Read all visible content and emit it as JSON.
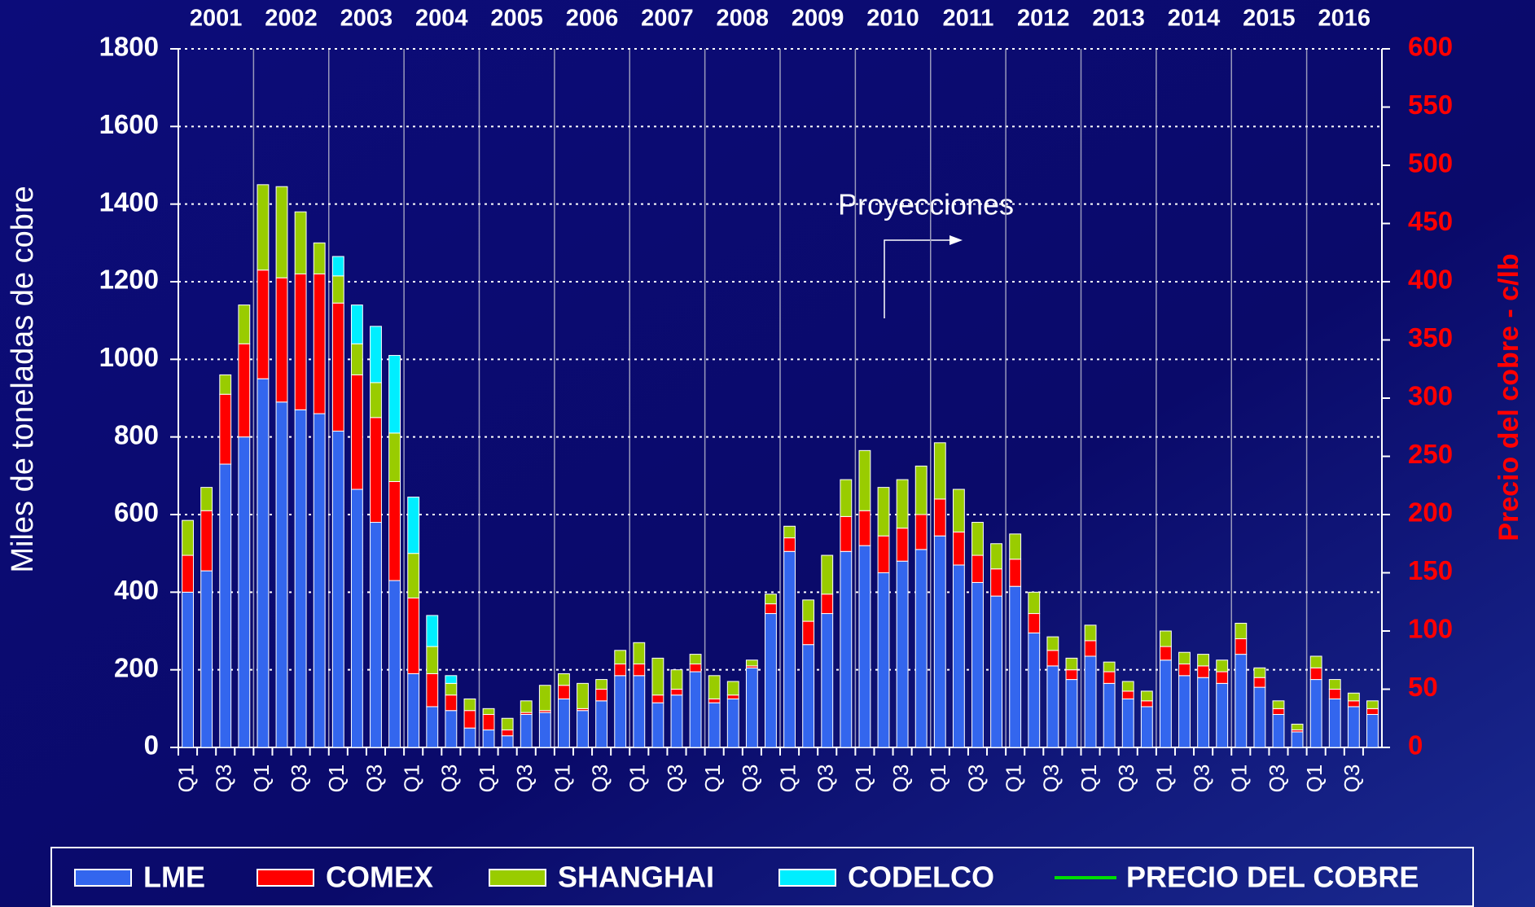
{
  "chart_data": {
    "type": "bar",
    "stacked": true,
    "ylabel": "Miles de toneladas de cobre",
    "y2label": "Precio del cobre - c/lb",
    "annotation": "Proyecciones",
    "year_labels": [
      "2001",
      "2002",
      "2003",
      "2004",
      "2005",
      "2006",
      "2007",
      "2008",
      "2009",
      "2010",
      "2011",
      "2012",
      "2013",
      "2014",
      "2015",
      "2016"
    ],
    "categories": [
      "Q1",
      null,
      "Q3",
      null,
      "Q1",
      null,
      "Q3",
      null,
      "Q1",
      null,
      "Q3",
      null,
      "Q1",
      null,
      "Q3",
      null,
      "Q1",
      null,
      "Q3",
      null,
      "Q1",
      null,
      "Q3",
      null,
      "Q1",
      null,
      "Q3",
      null,
      "Q1",
      null,
      "Q3",
      null,
      "Q1",
      null,
      "Q3",
      null,
      "Q1",
      null,
      "Q3",
      null,
      "Q1",
      null,
      "Q3",
      null,
      "Q1",
      null,
      "Q3",
      null,
      "Q1",
      null,
      "Q3",
      null,
      "Q1",
      null,
      "Q3",
      null,
      "Q1",
      null,
      "Q3",
      null,
      "Q1",
      null,
      "Q3",
      null
    ],
    "series": [
      {
        "name": "LME",
        "color": "#3366ee",
        "values": [
          400,
          455,
          730,
          800,
          950,
          890,
          870,
          860,
          815,
          665,
          580,
          430,
          190,
          105,
          95,
          50,
          45,
          30,
          85,
          90,
          125,
          95,
          120,
          185,
          185,
          115,
          135,
          195,
          115,
          125,
          205,
          345,
          505,
          265,
          345,
          505,
          520,
          450,
          480,
          510,
          545,
          470,
          425,
          390,
          415,
          295,
          210,
          175,
          235,
          165,
          125,
          105,
          225,
          185,
          180,
          165,
          240,
          155,
          85,
          40,
          175,
          125,
          105,
          85
        ]
      },
      {
        "name": "COMEX",
        "color": "#ff0000",
        "values": [
          95,
          155,
          180,
          240,
          280,
          320,
          350,
          360,
          330,
          295,
          270,
          255,
          195,
          85,
          40,
          45,
          40,
          15,
          5,
          5,
          35,
          5,
          30,
          30,
          30,
          20,
          15,
          20,
          10,
          10,
          5,
          25,
          35,
          60,
          50,
          90,
          90,
          95,
          85,
          90,
          95,
          85,
          70,
          70,
          70,
          50,
          40,
          25,
          40,
          30,
          20,
          15,
          35,
          30,
          30,
          30,
          40,
          25,
          15,
          5,
          30,
          25,
          15,
          15
        ]
      },
      {
        "name": "SHANGHAI",
        "color": "#99cc00",
        "values": [
          90,
          60,
          50,
          100,
          220,
          235,
          160,
          80,
          70,
          80,
          90,
          125,
          115,
          70,
          30,
          30,
          15,
          30,
          30,
          65,
          30,
          65,
          25,
          35,
          55,
          95,
          50,
          25,
          60,
          35,
          15,
          25,
          30,
          55,
          100,
          95,
          155,
          125,
          125,
          125,
          145,
          110,
          85,
          65,
          65,
          55,
          35,
          30,
          40,
          25,
          25,
          25,
          40,
          30,
          30,
          30,
          40,
          25,
          20,
          15,
          30,
          25,
          20,
          20
        ]
      },
      {
        "name": "CODELCO",
        "color": "#00eeff",
        "values": [
          null,
          null,
          null,
          null,
          null,
          null,
          null,
          null,
          50,
          100,
          145,
          200,
          145,
          80,
          20,
          null,
          null,
          null,
          null,
          null,
          null,
          null,
          null,
          null,
          null,
          null,
          null,
          null,
          null,
          null,
          null,
          null,
          null,
          null,
          null,
          null,
          null,
          null,
          null,
          null,
          null,
          null,
          null,
          null,
          null,
          null,
          null,
          null,
          null,
          null,
          null,
          null,
          null,
          null,
          null,
          null,
          null,
          null,
          null,
          null,
          null,
          null,
          null,
          null
        ]
      },
      {
        "name": "PRECIO DEL COBRE",
        "color": "#00dd00",
        "type": "line",
        "axis": "y2",
        "values": [
          null,
          null,
          null,
          null,
          null,
          null,
          null,
          null,
          null,
          null,
          null,
          null,
          null,
          null,
          null,
          null,
          null,
          null,
          null,
          null,
          null,
          null,
          null,
          null,
          null,
          null,
          null,
          null,
          null,
          null,
          null,
          null,
          null,
          null,
          null,
          null,
          null,
          null,
          null,
          null,
          null,
          null,
          null,
          null,
          null,
          null,
          null,
          null,
          null,
          null,
          null,
          null,
          null,
          null,
          null,
          null,
          null,
          null,
          null,
          null,
          null,
          null,
          null,
          null
        ]
      }
    ],
    "ylim": [
      0,
      1800
    ],
    "yticks": [
      0,
      200,
      400,
      600,
      800,
      1000,
      1200,
      1400,
      1600,
      1800
    ],
    "y2lim": [
      0,
      600
    ],
    "y2ticks": [
      0,
      50,
      100,
      150,
      200,
      250,
      300,
      350,
      400,
      450,
      500,
      550,
      600
    ],
    "y2_color": "#ff0000",
    "grid": true
  }
}
